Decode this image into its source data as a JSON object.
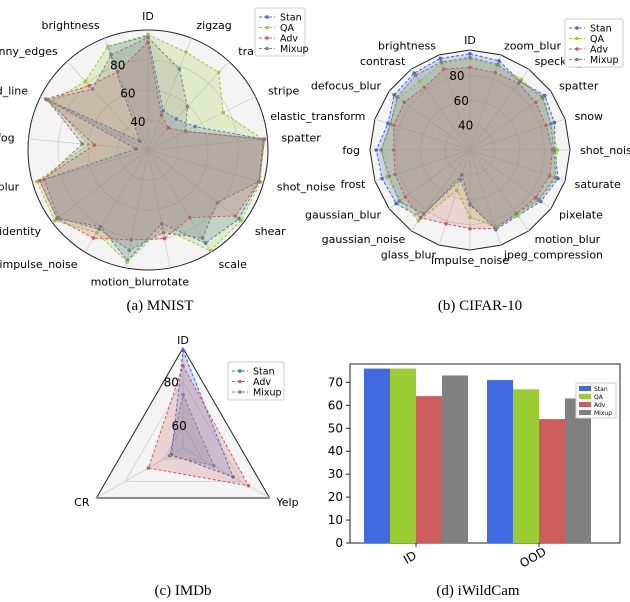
{
  "chart_data": [
    {
      "type": "radar",
      "caption": "(a) MNIST",
      "axes": [
        "ID",
        "zigzag",
        "translate",
        "stripe",
        "spatter",
        "shot_noise",
        "shear",
        "scale",
        "rotate",
        "motion_blur",
        "impulse_noise",
        "identity",
        "glass_blur",
        "fog",
        "dotted_line",
        "canny_edges",
        "brightness"
      ],
      "rlim": [
        20,
        100
      ],
      "rticks": [
        40,
        60,
        80
      ],
      "series": [
        {
          "name": "Stan",
          "color": "#4169E1",
          "values": [
            96,
            48,
            48,
            55,
            98,
            97,
            96,
            93,
            70,
            95,
            80,
            96,
            95,
            28,
            96,
            28,
            94
          ]
        },
        {
          "name": "QA",
          "color": "#9ACD32",
          "values": [
            97,
            90,
            90,
            76,
            97,
            98,
            98,
            99,
            73,
            96,
            85,
            98,
            97,
            60,
            92,
            82,
            94
          ]
        },
        {
          "name": "Adv",
          "color": "#CD5C5C",
          "values": [
            92,
            45,
            40,
            48,
            98,
            97,
            93,
            73,
            80,
            81,
            89,
            96,
            95,
            56,
            96,
            78,
            76
          ]
        },
        {
          "name": "Mixup",
          "color": "#808080",
          "values": [
            95,
            78,
            59,
            48,
            97,
            97,
            78,
            89,
            76,
            88,
            82,
            95,
            92,
            64,
            95,
            75,
            88
          ]
        }
      ]
    },
    {
      "type": "radar",
      "caption": "(b) CIFAR-10",
      "axes": [
        "ID",
        "zoom_blur",
        "speckle_noise",
        "spatter",
        "snow",
        "shot_noise",
        "saturate",
        "pixelate",
        "motion_blur",
        "jpeg_compression",
        "impulse_noise",
        "glass_blur",
        "gaussian_noise",
        "gaussian_blur",
        "frost",
        "fog",
        "elastic_transform",
        "defocus_blur",
        "contrast",
        "brightness"
      ],
      "rlim": [
        20,
        100
      ],
      "rticks": [
        40,
        60,
        80
      ],
      "series": [
        {
          "name": "Stan",
          "color": "#4169E1",
          "values": [
            97,
            95,
            88,
            94,
            91,
            88,
            94,
            90,
            85,
            87,
            63,
            41,
            87,
            93,
            94,
            95,
            89,
            95,
            96,
            97
          ]
        },
        {
          "name": "QA",
          "color": "#9ACD32",
          "values": [
            93,
            91,
            90,
            91,
            88,
            90,
            91,
            88,
            85,
            84,
            74,
            54,
            90,
            89,
            90,
            91,
            87,
            91,
            88,
            93
          ]
        },
        {
          "name": "Adv",
          "color": "#CD5C5C",
          "values": [
            86,
            85,
            86,
            85,
            84,
            86,
            87,
            85,
            83,
            86,
            83,
            82,
            87,
            84,
            83,
            81,
            84,
            85,
            82,
            88
          ]
        },
        {
          "name": "Mixup",
          "color": "#808080",
          "values": [
            94,
            92,
            88,
            92,
            88,
            87,
            92,
            88,
            83,
            86,
            64,
            45,
            83,
            90,
            88,
            91,
            87,
            92,
            94,
            94
          ]
        }
      ]
    },
    {
      "type": "radar",
      "caption": "(c) IMDb",
      "axes": [
        "ID",
        "Yelp",
        "CR"
      ],
      "rlim": [
        50,
        95
      ],
      "rticks": [
        60,
        80
      ],
      "series": [
        {
          "name": "Stan",
          "color": "#4169E1",
          "values": [
            94,
            76,
            56
          ]
        },
        {
          "name": "Adv",
          "color": "#CD5C5C",
          "values": [
            87,
            84,
            68
          ]
        },
        {
          "name": "Mixup",
          "color": "#808080",
          "values": [
            74,
            66,
            57
          ]
        }
      ]
    },
    {
      "type": "bar",
      "caption": "(d) iWildCam",
      "categories": [
        "ID",
        "OOD"
      ],
      "ylim": [
        0,
        78
      ],
      "yticks": [
        0,
        10,
        20,
        30,
        40,
        50,
        60,
        70
      ],
      "series": [
        {
          "name": "Stan",
          "color": "#4169E1",
          "values": [
            76,
            71
          ]
        },
        {
          "name": "QA",
          "color": "#9ACD32",
          "values": [
            76,
            67
          ]
        },
        {
          "name": "Adv",
          "color": "#CD5C5C",
          "values": [
            64,
            54
          ]
        },
        {
          "name": "Mixup",
          "color": "#808080",
          "values": [
            73,
            63
          ]
        }
      ]
    }
  ]
}
